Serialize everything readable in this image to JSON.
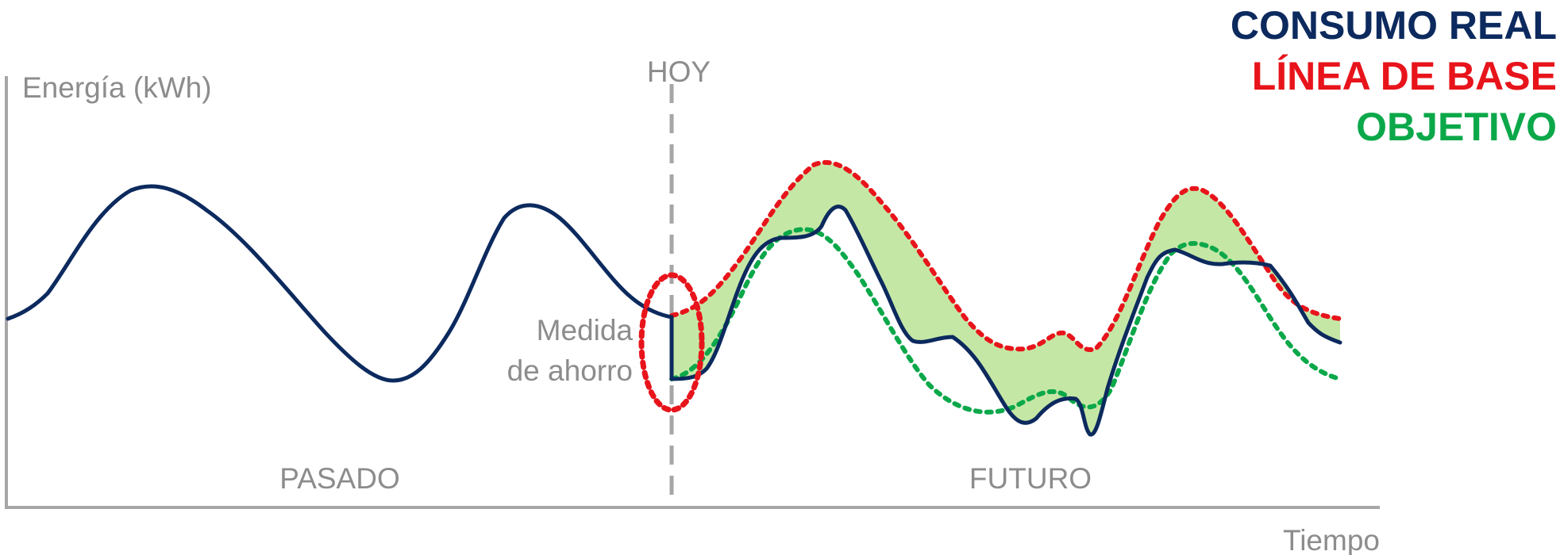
{
  "legend": {
    "actual": {
      "label": "CONSUMO REAL",
      "color": "#0c2a5e"
    },
    "baseline": {
      "label": "LÍNEA DE BASE",
      "color": "#e8141b"
    },
    "target": {
      "label": "OBJETIVO",
      "color": "#0ba84a"
    }
  },
  "axes": {
    "y_label": "Energía (kWh)",
    "x_label": "Tiempo"
  },
  "annotations": {
    "today": "HOY",
    "past": "PASADO",
    "future": "FUTURO",
    "savings_line1": "Medida",
    "savings_line2": "de ahorro"
  },
  "colors": {
    "axis": "#a6a6a6",
    "text": "#8c8c8c",
    "savings_fill": "#c5e7a5"
  }
}
